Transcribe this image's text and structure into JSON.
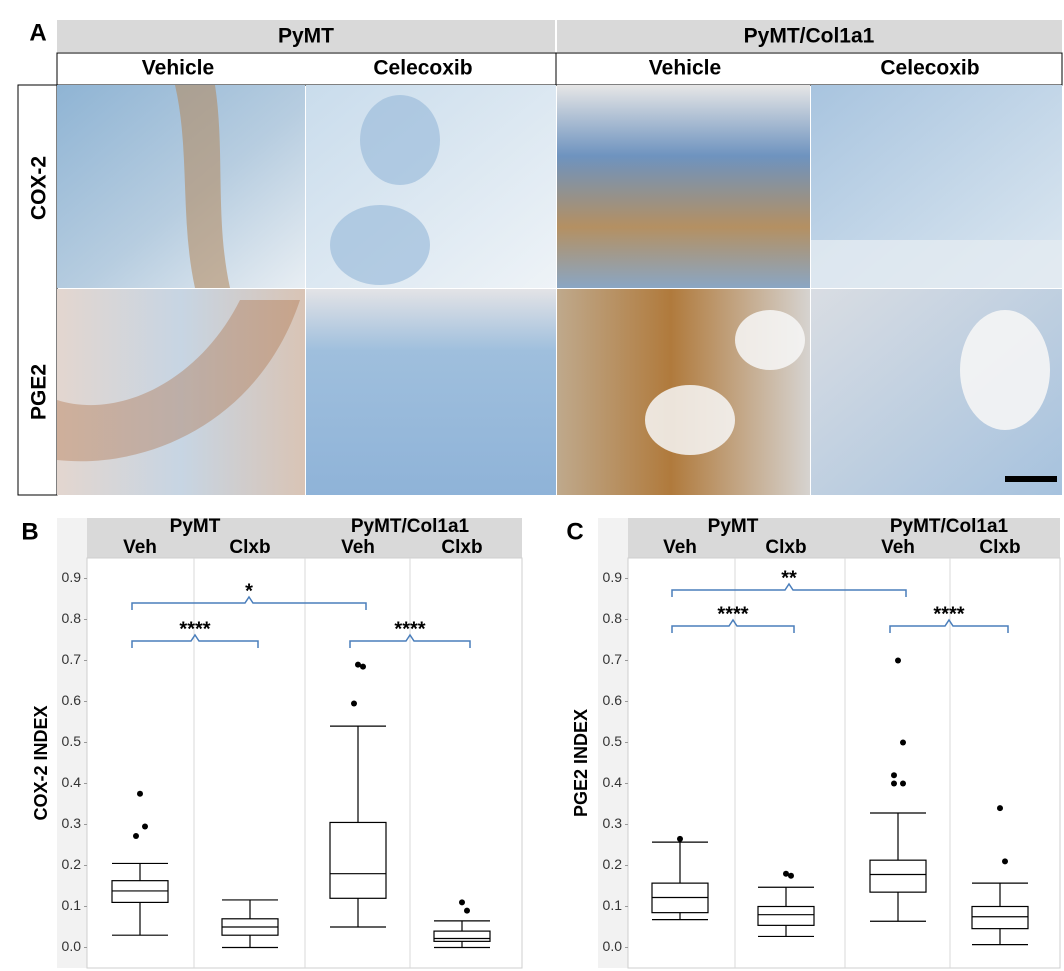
{
  "panel_a": {
    "label": "A",
    "groups": [
      "PyMT",
      "PyMT/Col1a1"
    ],
    "columns": [
      "Vehicle",
      "Celecoxib",
      "Vehicle",
      "Celecoxib"
    ],
    "rows": [
      "COX-2",
      "PGE2"
    ]
  },
  "chart_data": [
    {
      "type": "box",
      "label": "B",
      "y_label": "COX-2 INDEX",
      "groups": [
        "PyMT",
        "PyMT/Col1a1"
      ],
      "categories": [
        "Veh",
        "Clxb",
        "Veh",
        "Clxb"
      ],
      "ylim": [
        -0.05,
        0.95
      ],
      "yticks": [
        {
          "value": 0,
          "label": "0.0"
        },
        0.1,
        0.2,
        0.3,
        0.4,
        0.5,
        0.6,
        0.7,
        0.8,
        0.9
      ],
      "boxes": [
        {
          "whisker_low": 0.03,
          "q1": 0.11,
          "median": 0.138,
          "q3": 0.163,
          "whisker_high": 0.205,
          "outliers": [
            0.375,
            0.295,
            0.272
          ]
        },
        {
          "whisker_low": 0.0,
          "q1": 0.03,
          "median": 0.05,
          "q3": 0.07,
          "whisker_high": 0.116,
          "outliers": []
        },
        {
          "whisker_low": 0.05,
          "q1": 0.12,
          "median": 0.18,
          "q3": 0.305,
          "whisker_high": 0.54,
          "outliers": [
            0.69,
            0.685,
            0.595
          ]
        },
        {
          "whisker_low": 0.0,
          "q1": 0.015,
          "median": 0.022,
          "q3": 0.04,
          "whisker_high": 0.065,
          "outliers": [
            0.11,
            0.09
          ]
        }
      ],
      "annotations": [
        "*",
        "****",
        "****"
      ]
    },
    {
      "type": "box",
      "label": "C",
      "y_label": "PGE2 INDEX",
      "groups": [
        "PyMT",
        "PyMT/Col1a1"
      ],
      "categories": [
        "Veh",
        "Clxb",
        "Veh",
        "Clxb"
      ],
      "ylim": [
        -0.05,
        0.95
      ],
      "yticks": [
        {
          "value": 0,
          "label": "0.0"
        },
        0.1,
        0.2,
        0.3,
        0.4,
        0.5,
        0.6,
        0.7,
        0.8,
        0.9
      ],
      "boxes": [
        {
          "whisker_low": 0.068,
          "q1": 0.085,
          "median": 0.122,
          "q3": 0.157,
          "whisker_high": 0.257,
          "outliers": [
            0.265
          ]
        },
        {
          "whisker_low": 0.027,
          "q1": 0.054,
          "median": 0.08,
          "q3": 0.1,
          "whisker_high": 0.147,
          "outliers": [
            0.18,
            0.175
          ]
        },
        {
          "whisker_low": 0.064,
          "q1": 0.135,
          "median": 0.178,
          "q3": 0.213,
          "whisker_high": 0.328,
          "outliers": [
            0.7,
            0.5,
            0.42,
            0.4,
            0.4
          ]
        },
        {
          "whisker_low": 0.007,
          "q1": 0.046,
          "median": 0.075,
          "q3": 0.1,
          "whisker_high": 0.157,
          "outliers": [
            0.34,
            0.21
          ]
        }
      ],
      "annotations": [
        "**",
        "****",
        "****"
      ]
    }
  ]
}
